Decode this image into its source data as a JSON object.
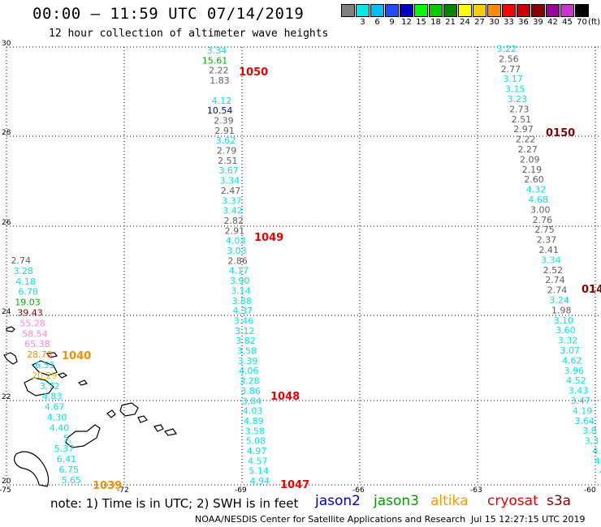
{
  "header": {
    "title": "00:00 – 11:59 UTC 07/14/2019",
    "subtitle": "12 hour collection of altimeter wave heights"
  },
  "legend": {
    "swatches": [
      {
        "label": "",
        "color": "#808080"
      },
      {
        "label": "3",
        "color": "#00e8e8"
      },
      {
        "label": "6",
        "color": "#00bfff"
      },
      {
        "label": "9",
        "color": "#1e4cff"
      },
      {
        "label": "12",
        "color": "#0000c8"
      },
      {
        "label": "15",
        "color": "#00ff00"
      },
      {
        "label": "18",
        "color": "#00cc00"
      },
      {
        "label": "21",
        "color": "#008800"
      },
      {
        "label": "24",
        "color": "#ffff00"
      },
      {
        "label": "27",
        "color": "#ffcc00"
      },
      {
        "label": "30",
        "color": "#ff8c00"
      },
      {
        "label": "33",
        "color": "#ff0000"
      },
      {
        "label": "36",
        "color": "#cc0000"
      },
      {
        "label": "39",
        "color": "#880000"
      },
      {
        "label": "42",
        "color": "#990099"
      },
      {
        "label": "45",
        "color": "#cc33cc"
      },
      {
        "label": "70",
        "color": "#000000"
      }
    ],
    "unit": "(ft)"
  },
  "axes": {
    "lat_ticks": [
      "30",
      "28",
      "26",
      "24",
      "22",
      "20"
    ],
    "lon_ticks": [
      "-75",
      "-72",
      "-69",
      "-66",
      "-63",
      "-60"
    ]
  },
  "colors": {
    "gray": "#606060",
    "cyan": "#00e8e8",
    "blue": "#0000c8",
    "green": "#00b000",
    "gold": "#e0c000",
    "orange": "#ff8c00",
    "red": "#ee0000",
    "darkred": "#880000",
    "pink": "#ff88dd",
    "black": "#000000"
  },
  "tracks": {
    "track_1050": [
      [
        "3.34",
        "cyan"
      ],
      [
        "15.61",
        "green"
      ],
      [
        "2.22",
        "gray"
      ],
      [
        "1.83",
        "gray"
      ],
      [
        "",
        ""
      ],
      [
        "4.12",
        "cyan"
      ],
      [
        "10.54",
        "blue"
      ],
      [
        "2.39",
        "gray"
      ],
      [
        "2.91",
        "gray"
      ],
      [
        "3.62",
        "cyan"
      ],
      [
        "2.79",
        "gray"
      ],
      [
        "2.51",
        "gray"
      ],
      [
        "3.67",
        "cyan"
      ],
      [
        "3.34",
        "cyan"
      ],
      [
        "2.47",
        "gray"
      ],
      [
        "3.37",
        "cyan"
      ],
      [
        "3.42",
        "cyan"
      ],
      [
        "2.82",
        "gray"
      ],
      [
        "2.91",
        "gray"
      ],
      [
        "4.03",
        "cyan"
      ],
      [
        "3.03",
        "cyan"
      ],
      [
        "2.86",
        "gray"
      ],
      [
        "4.17",
        "cyan"
      ],
      [
        "3.90",
        "cyan"
      ],
      [
        "3.14",
        "cyan"
      ],
      [
        "3.88",
        "cyan"
      ],
      [
        "4.37",
        "cyan"
      ],
      [
        "3.46",
        "cyan"
      ],
      [
        "3.12",
        "cyan"
      ],
      [
        "3.82",
        "cyan"
      ],
      [
        "3.58",
        "cyan"
      ],
      [
        "3.39",
        "cyan"
      ],
      [
        "4.06",
        "cyan"
      ],
      [
        "3.28",
        "cyan"
      ],
      [
        "3.86",
        "cyan"
      ],
      [
        "3.84",
        "cyan"
      ],
      [
        "4.03",
        "cyan"
      ],
      [
        "4.89",
        "cyan"
      ],
      [
        "3.58",
        "cyan"
      ],
      [
        "5.08",
        "cyan"
      ],
      [
        "4.97",
        "cyan"
      ],
      [
        "4.57",
        "cyan"
      ],
      [
        "5.14",
        "cyan"
      ],
      [
        "4.94",
        "cyan"
      ]
    ],
    "track_0150": [
      [
        "3.22",
        "cyan"
      ],
      [
        "2.56",
        "gray"
      ],
      [
        "2.77",
        "gray"
      ],
      [
        "3.17",
        "cyan"
      ],
      [
        "3.15",
        "cyan"
      ],
      [
        "3.23",
        "cyan"
      ],
      [
        "2.73",
        "gray"
      ],
      [
        "2.51",
        "gray"
      ],
      [
        "2.97",
        "gray"
      ],
      [
        "2.22",
        "gray"
      ],
      [
        "2.27",
        "gray"
      ],
      [
        "2.09",
        "gray"
      ],
      [
        "2.19",
        "gray"
      ],
      [
        "2.60",
        "gray"
      ],
      [
        "4.32",
        "cyan"
      ],
      [
        "4.68",
        "cyan"
      ],
      [
        "3.00",
        "gray"
      ],
      [
        "2.76",
        "gray"
      ],
      [
        "2.75",
        "gray"
      ],
      [
        "2.37",
        "gray"
      ],
      [
        "2.41",
        "gray"
      ],
      [
        "3.34",
        "cyan"
      ],
      [
        "2.52",
        "gray"
      ],
      [
        "2.74",
        "gray"
      ],
      [
        "2.74",
        "gray"
      ],
      [
        "3.24",
        "cyan"
      ],
      [
        "1.98",
        "gray"
      ],
      [
        "3.10",
        "cyan"
      ],
      [
        "3.60",
        "cyan"
      ],
      [
        "3.32",
        "cyan"
      ],
      [
        "3.07",
        "cyan"
      ],
      [
        "4.62",
        "cyan"
      ],
      [
        "3.96",
        "cyan"
      ],
      [
        "4.52",
        "cyan"
      ],
      [
        "3.43",
        "cyan"
      ],
      [
        "3.47",
        "cyan"
      ],
      [
        "4.19",
        "cyan"
      ],
      [
        "3.64",
        "cyan"
      ],
      [
        "3.8",
        "cyan"
      ],
      [
        "3.3",
        "cyan"
      ],
      [
        "4.",
        "cyan"
      ],
      [
        "4.",
        "cyan"
      ],
      [
        "4",
        "cyan"
      ]
    ],
    "track_1040": [
      [
        "2.74",
        "gray"
      ],
      [
        "3.28",
        "cyan"
      ],
      [
        "4.18",
        "cyan"
      ],
      [
        "6.78",
        "cyan"
      ],
      [
        "19.03",
        "green"
      ],
      [
        "39.43",
        "darkred"
      ],
      [
        "55.28",
        "pink"
      ],
      [
        "58.54",
        "pink"
      ],
      [
        "65.38",
        "pink"
      ],
      [
        "28.78",
        "orange"
      ],
      [
        "6.51",
        "cyan"
      ],
      [
        "20.29",
        "gold"
      ],
      [
        "3.72",
        "cyan"
      ],
      [
        "4.83",
        "cyan"
      ],
      [
        "4.67",
        "cyan"
      ],
      [
        "4.30",
        "cyan"
      ],
      [
        "4.40",
        "cyan"
      ],
      [
        "5.",
        "cyan"
      ],
      [
        "5.37",
        "cyan"
      ],
      [
        "6.41",
        "cyan"
      ],
      [
        "6.75",
        "cyan"
      ],
      [
        "5.65",
        "cyan"
      ]
    ],
    "time_labels": [
      {
        "text": "1050",
        "color": "red"
      },
      {
        "text": "1049",
        "color": "red"
      },
      {
        "text": "1048",
        "color": "red"
      },
      {
        "text": "1047",
        "color": "red"
      },
      {
        "text": "0150",
        "color": "darkred"
      },
      {
        "text": "014",
        "color": "darkred"
      },
      {
        "text": "1040",
        "color": "orange"
      },
      {
        "text": "1039",
        "color": "orange"
      }
    ]
  },
  "footer": {
    "note": "note: 1) Time is in UTC; 2) SWH is in feet",
    "satellites": [
      {
        "name": "jason2",
        "color": "#0000c8"
      },
      {
        "name": "jason3",
        "color": "#00a000"
      },
      {
        "name": "altika",
        "color": "#ff9900"
      },
      {
        "name": "cryosat",
        "color": "#ee0000"
      },
      {
        "name": "s3a",
        "color": "#880000"
      }
    ],
    "credit": "NOAA/NESDIS Center for Satellite Applications and Research",
    "timestamp": "Jul 15 12:27:15 UTC 2019"
  }
}
